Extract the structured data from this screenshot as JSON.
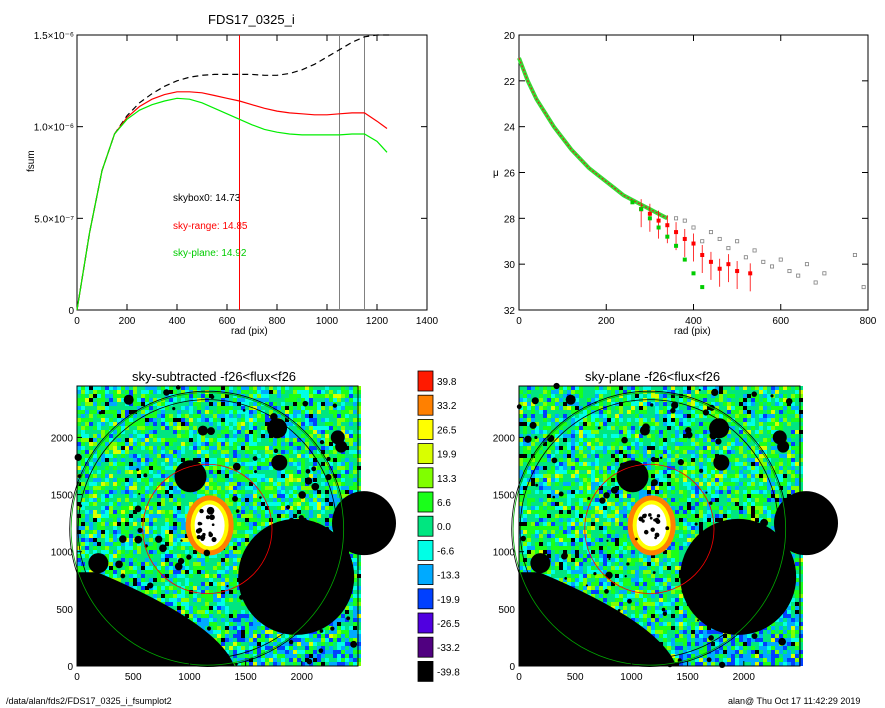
{
  "footer": {
    "path": "/data/alan/fds2/FDS17_0325_i_fsumplot2",
    "stamp": "alan@  Thu Oct 17 11:42:29 2019"
  },
  "chart_data": [
    {
      "type": "line",
      "title": "FDS17_0325_i",
      "xlabel": "rad (pix)",
      "ylabel": "fsum",
      "xlim": [
        0,
        1400
      ],
      "ylim": [
        0,
        1.5e-06
      ],
      "xticks": [
        "0",
        "200",
        "400",
        "600",
        "800",
        "1000",
        "1200",
        "1400"
      ],
      "yticks": [
        {
          "value": 0,
          "label": "0"
        },
        {
          "value": 5e-07,
          "label": "5.0×10⁻⁷"
        },
        {
          "value": 1e-06,
          "label": "1.0×10⁻⁶"
        },
        {
          "value": 1.5e-06,
          "label": "1.5×10⁻⁶"
        }
      ],
      "vlines": [
        {
          "x": 650,
          "color": "#ff0000"
        },
        {
          "x": 1050,
          "color": "#808080"
        },
        {
          "x": 1150,
          "color": "#808080"
        }
      ],
      "annotations": [
        {
          "text": "skybox0: 14.73",
          "color": "#000000"
        },
        {
          "text": "sky-range: 14.85",
          "color": "#ff0000"
        },
        {
          "text": "sky-plane: 14.92",
          "color": "#00cc00"
        }
      ],
      "series": [
        {
          "color": "#000000",
          "style": "dashed",
          "x": [
            0,
            50,
            100,
            150,
            200,
            250,
            300,
            350,
            400,
            450,
            500,
            550,
            600,
            650,
            700,
            750,
            800,
            850,
            900,
            950,
            1000,
            1050,
            1100,
            1150,
            1200,
            1250
          ],
          "y": [
            0,
            4.2e-07,
            7.6e-07,
            9.6e-07,
            1.06e-06,
            1.13e-06,
            1.18e-06,
            1.22e-06,
            1.25e-06,
            1.27e-06,
            1.28e-06,
            1.285e-06,
            1.285e-06,
            1.285e-06,
            1.285e-06,
            1.28e-06,
            1.28e-06,
            1.29e-06,
            1.31e-06,
            1.34e-06,
            1.38e-06,
            1.42e-06,
            1.46e-06,
            1.49e-06,
            1.5e-06,
            1.5e-06
          ]
        },
        {
          "color": "#ff0000",
          "style": "solid",
          "x": [
            0,
            50,
            100,
            150,
            200,
            250,
            300,
            350,
            400,
            450,
            500,
            550,
            600,
            650,
            700,
            750,
            800,
            850,
            900,
            950,
            1000,
            1050,
            1100,
            1150,
            1200,
            1240
          ],
          "y": [
            0,
            4.2e-07,
            7.6e-07,
            9.6e-07,
            1.05e-06,
            1.11e-06,
            1.15e-06,
            1.175e-06,
            1.19e-06,
            1.19e-06,
            1.185e-06,
            1.17e-06,
            1.155e-06,
            1.14e-06,
            1.12e-06,
            1.1e-06,
            1.085e-06,
            1.075e-06,
            1.07e-06,
            1.065e-06,
            1.065e-06,
            1.07e-06,
            1.075e-06,
            1.075e-06,
            1.03e-06,
            9.9e-07
          ]
        },
        {
          "color": "#00ee00",
          "style": "solid",
          "x": [
            0,
            50,
            100,
            150,
            200,
            250,
            300,
            350,
            400,
            450,
            500,
            550,
            600,
            650,
            700,
            750,
            800,
            850,
            900,
            950,
            1000,
            1050,
            1100,
            1150,
            1200,
            1240
          ],
          "y": [
            0,
            4.2e-07,
            7.6e-07,
            9.6e-07,
            1.04e-06,
            1.09e-06,
            1.12e-06,
            1.14e-06,
            1.155e-06,
            1.15e-06,
            1.13e-06,
            1.1e-06,
            1.07e-06,
            1.04e-06,
            1.01e-06,
            9.85e-07,
            9.7e-07,
            9.6e-07,
            9.55e-07,
            9.55e-07,
            9.55e-07,
            9.55e-07,
            9.6e-07,
            9.6e-07,
            9.2e-07,
            8.6e-07
          ]
        }
      ]
    },
    {
      "type": "scatter",
      "title": "",
      "xlabel": "rad (pix)",
      "ylabel": "μ",
      "xlim": [
        0,
        800
      ],
      "ylim": [
        32,
        20
      ],
      "xticks": [
        "0",
        "200",
        "400",
        "600",
        "800"
      ],
      "yticks": [
        "20",
        "22",
        "24",
        "26",
        "28",
        "30",
        "32"
      ],
      "curve": {
        "x": [
          0,
          20,
          40,
          60,
          80,
          100,
          120,
          140,
          160,
          180,
          200,
          220,
          240,
          260,
          280,
          300,
          320,
          340
        ],
        "y": [
          21.0,
          22.0,
          22.8,
          23.4,
          24.0,
          24.5,
          25.0,
          25.4,
          25.8,
          26.1,
          26.4,
          26.7,
          27.0,
          27.2,
          27.4,
          27.6,
          27.8,
          28.0
        ]
      },
      "series": [
        {
          "name": "",
          "color": "#808080",
          "marker": "square",
          "x": [
            360,
            380,
            400,
            420,
            440,
            460,
            480,
            500,
            520,
            540,
            560,
            580,
            600,
            620,
            640,
            660,
            680,
            700,
            770,
            790
          ],
          "y": [
            28.0,
            28.1,
            28.4,
            29.0,
            28.6,
            28.9,
            29.3,
            29.0,
            29.7,
            29.4,
            29.9,
            30.1,
            29.8,
            30.3,
            30.5,
            30.0,
            30.8,
            30.4,
            29.6,
            31.0
          ]
        },
        {
          "name": "",
          "color": "#ff0000",
          "marker": "square",
          "x": [
            280,
            300,
            320,
            340,
            360,
            380,
            400,
            420,
            440,
            460,
            480,
            500,
            530
          ],
          "y": [
            27.6,
            27.8,
            28.1,
            28.3,
            28.6,
            28.9,
            29.1,
            29.6,
            29.9,
            30.2,
            30.0,
            30.3,
            30.4
          ]
        },
        {
          "name": "",
          "color": "#00cc00",
          "marker": "square",
          "x": [
            260,
            280,
            300,
            320,
            340,
            360,
            380,
            400,
            420
          ],
          "y": [
            27.3,
            27.6,
            28.0,
            28.4,
            28.8,
            29.2,
            29.8,
            30.4,
            31.0
          ]
        }
      ]
    },
    {
      "type": "heatmap",
      "title": "sky-subtracted -f26<flux<f26",
      "xticks": [
        "0",
        "500",
        "1000",
        "1500",
        "2000"
      ],
      "yticks": [
        "0",
        "500",
        "1000",
        "1500",
        "2000"
      ],
      "xlim": [
        0,
        2500
      ],
      "ylim": [
        0,
        2450
      ]
    },
    {
      "type": "heatmap",
      "title": "sky-plane -f26<flux<f26",
      "xticks": [
        "0",
        "500",
        "1000",
        "1500",
        "2000"
      ],
      "yticks": [
        "0",
        "500",
        "1000",
        "1500",
        "2000"
      ],
      "xlim": [
        0,
        2500
      ],
      "ylim": [
        0,
        2450
      ]
    }
  ],
  "colorbar": {
    "levels": [
      {
        "label": "39.8",
        "color": "#ff1a00"
      },
      {
        "label": "33.2",
        "color": "#ff8000"
      },
      {
        "label": "26.5",
        "color": "#ffff00"
      },
      {
        "label": "19.9",
        "color": "#d9ff00"
      },
      {
        "label": "13.3",
        "color": "#80ff00"
      },
      {
        "label": "6.6",
        "color": "#1aff1a"
      },
      {
        "label": "0.0",
        "color": "#00e680"
      },
      {
        "label": "-6.6",
        "color": "#00ffe6"
      },
      {
        "label": "-13.3",
        "color": "#00aaff"
      },
      {
        "label": "-19.9",
        "color": "#0040ff"
      },
      {
        "label": "-26.5",
        "color": "#5000e0"
      },
      {
        "label": "-33.2",
        "color": "#500080"
      },
      {
        "label": "-39.8",
        "color": "#000000"
      }
    ]
  }
}
